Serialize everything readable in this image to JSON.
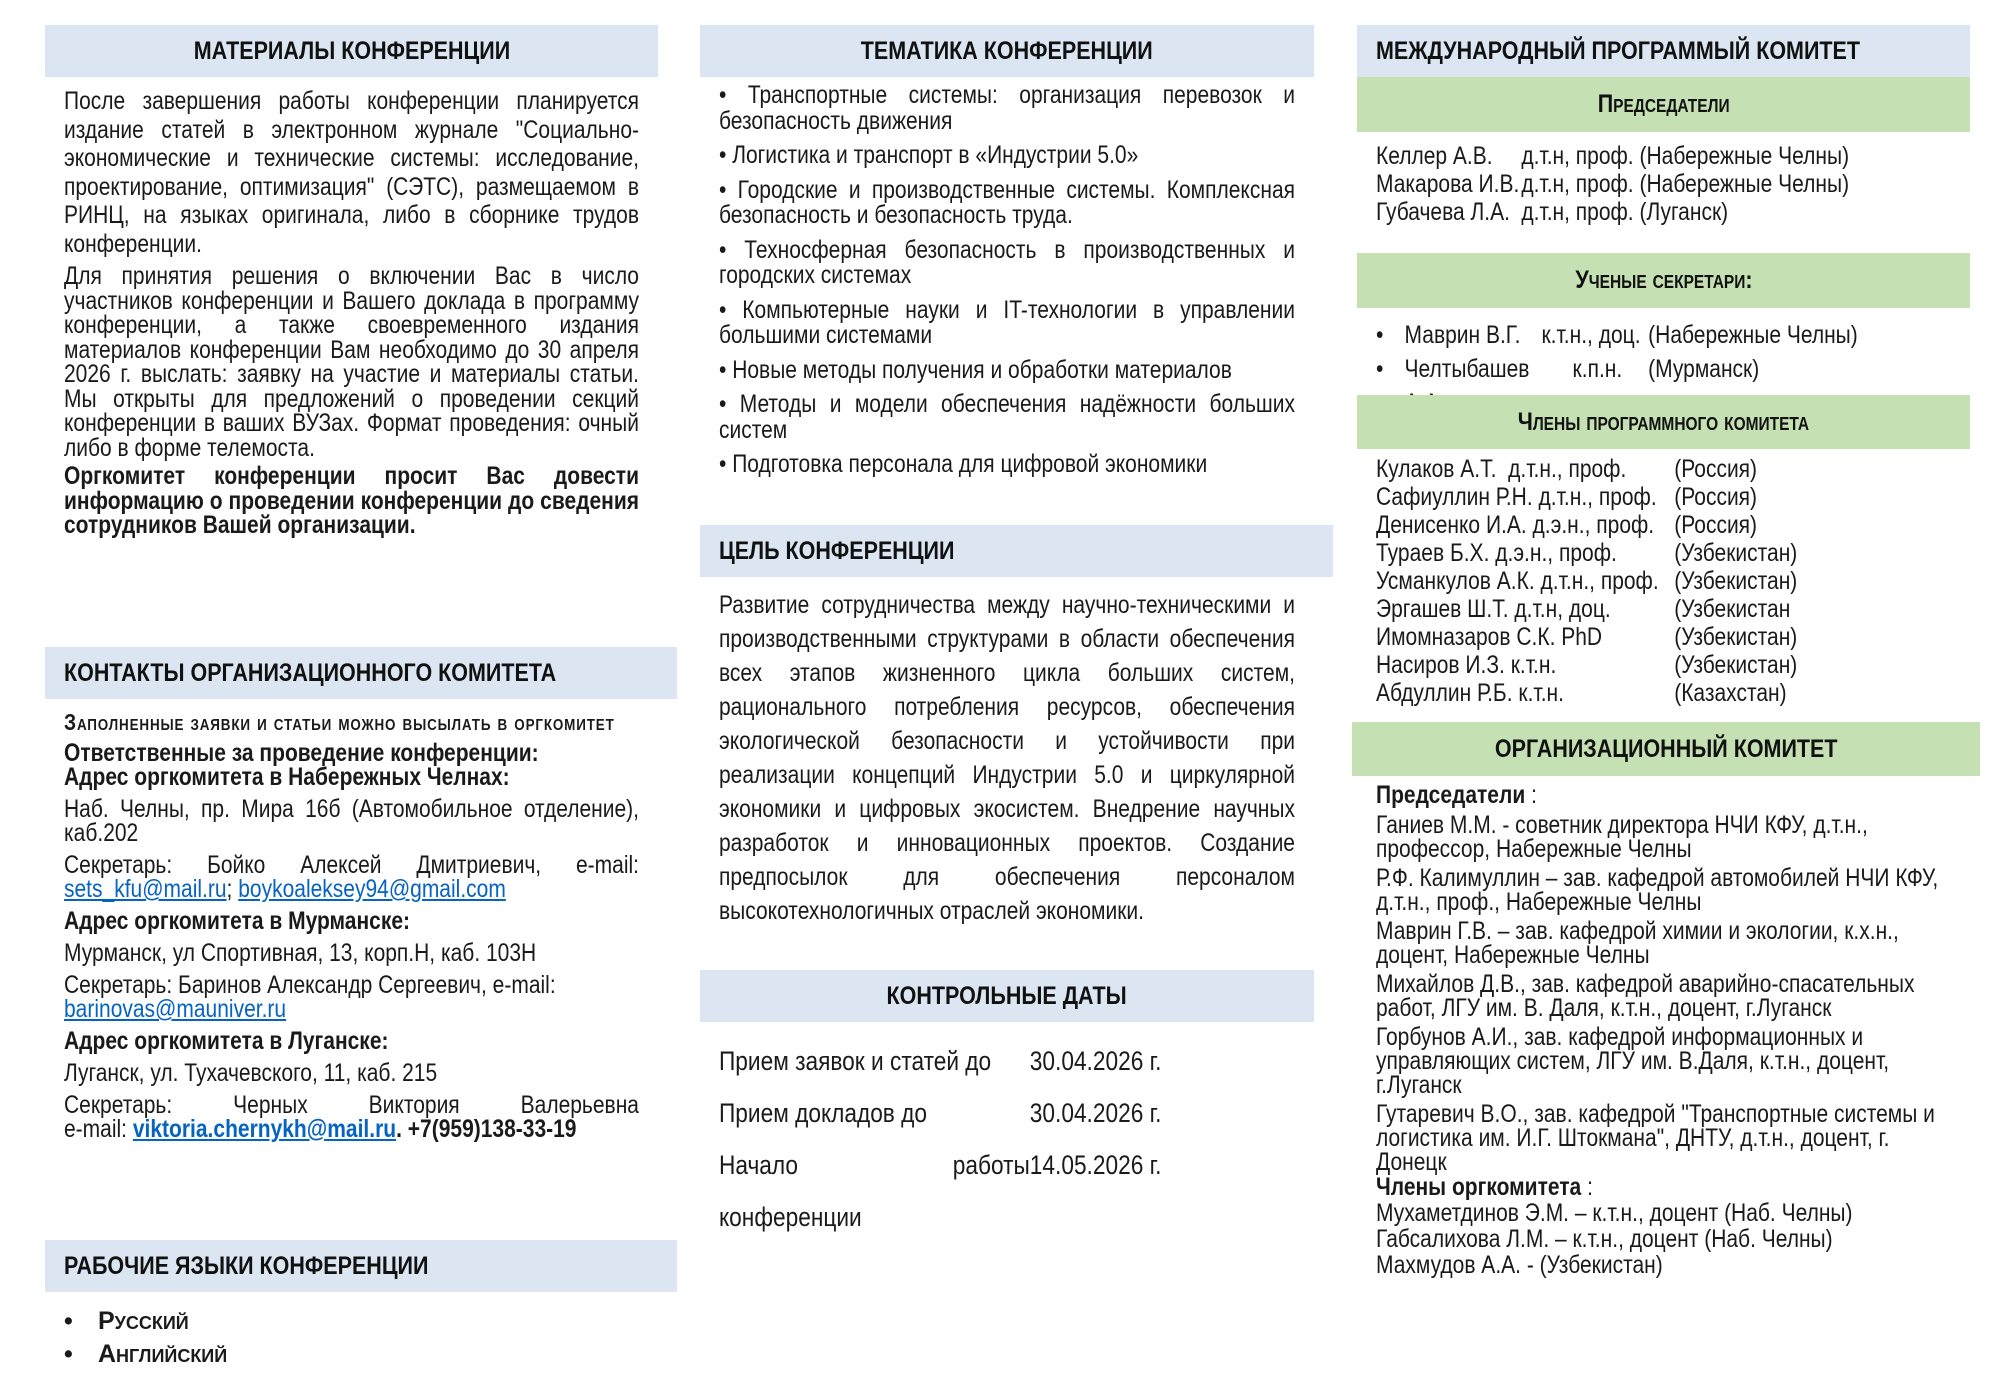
{
  "colors": {
    "section_header_bg": "#dce6f2",
    "subsection_header_bg": "#c5e0b3",
    "link": "#0563c1"
  },
  "materials": {
    "title": "МАТЕРИАЛЫ КОНФЕРЕНЦИИ",
    "p1": "После завершения работы конференции планируется издание статей в электронном журнале \"Социально-экономические и технические системы: исследование, проектирование, оптимизация\" (СЭТС), размещаемом в РИНЦ, на языках оригинала, либо в сборнике трудов конференции.",
    "p2": "Для принятия решения о включении Вас в число участников конференции и Вашего доклада в программу конференции, а также своевременного издания материалов конференции Вам необходимо до 30 апреля 2026 г. выслать: заявку на участие и материалы статьи. Мы открыты для предложений о проведении секций конференции в ваших ВУЗах. Формат проведения: очный либо в форме телемоста.",
    "p3": "Оргкомитет конференции просит Вас довести информацию о проведении конференции до сведения сотрудников Вашей организации."
  },
  "contacts": {
    "title": "КОНТАКТЫ ОРГАНИЗАЦИОННОГО КОМИТЕТА",
    "intro": "Заполненные заявки и статьи можно высылать в оргкомитет",
    "responsible": "Ответственные за проведение конференции:",
    "chelny_title": "Адрес оргкомитета в Набережных Челнах:",
    "chelny_address": "Наб. Челны, пр. Мира 16б (Автомобильное отделение), каб.202",
    "chelny_secretary": "Секретарь: Бойко Алексей Дмитриевич, e-mail:",
    "chelny_email1": "sets_kfu@mail.ru",
    "chelny_sep": "; ",
    "chelny_email2": "boykoaleksey94@gmail.com",
    "murmansk_title": "Адрес оргкомитета в Мурманске:",
    "murmansk_address": "Мурманск, ул Спортивная, 13, корп.Н, каб. 103Н",
    "murmansk_secretary": "Секретарь: Баринов Александр Сергеевич, e-mail:",
    "murmansk_email": "barinovas@mauniver.ru",
    "lugansk_title": "Адрес оргкомитета в Луганске:",
    "lugansk_address": "Луганск, ул. Тухачевского, 11, каб. 215",
    "lugansk_secretary": "Секретарь: Черных Виктория Валерьевна",
    "lugansk_email_label": "e-mail:",
    "lugansk_email": "viktoria.chernykh@mail.ru",
    "lugansk_phone": ". +7(959)138-33-19"
  },
  "languages": {
    "title": "РАБОЧИЕ ЯЗЫКИ КОНФЕРЕНЦИИ",
    "items": [
      "Русский",
      "Английский"
    ]
  },
  "topics": {
    "title": "ТЕМАТИКА КОНФЕРЕНЦИИ",
    "items": [
      "Транспортные системы: организация перевозок и безопасность движения",
      "Логистика и транспорт в «Индустрии 5.0»",
      "Городские и производственные системы. Комплексная безопасность и безопасность труда.",
      "Техносферная безопасность в производственных и городских системах",
      "Компьютерные науки и IT-технологии в управлении большими системами",
      "Новые методы получения и обработки материалов",
      "Методы и модели обеспечения надёжности больших систем",
      "Подготовка персонала для цифровой экономики"
    ]
  },
  "goal": {
    "title": "ЦЕЛЬ КОНФЕРЕНЦИИ",
    "text": "Развитие сотрудничества между научно-техническими и производственными структурами в области обеспечения всех этапов жизненного цикла больших систем, рационального потребления ресурсов, обеспечения экологической безопасности и устойчивости при реализации концепций Индустрии 5.0 и циркулярной экономики и цифровых экосистем. Внедрение научных разработок и инновационных проектов. Создание предпосылок для обеспечения персоналом высокотехнологичных отраслей экономики."
  },
  "dates": {
    "title": "КОНТРОЛЬНЫЕ ДАТЫ",
    "rows": [
      {
        "label": "Прием заявок и статей до",
        "date": "30.04.2026 г."
      },
      {
        "label": "Прием докладов до",
        "date": "30.04.2026 г."
      },
      {
        "label": "Начало работы конференции",
        "date": "14.05.2026 г."
      }
    ]
  },
  "program_committee": {
    "title": "МЕЖДУНАРОДНЫЙ ПРОГРАММЫЙ КОМИТЕТ",
    "chairs_title": "Председатели",
    "chairs": [
      {
        "name": "Келлер А.В.",
        "info": "д.т.н, проф. (Набережные Челны)"
      },
      {
        "name": "Макарова И.В.",
        "info": "д.т.н, проф. (Набережные Челны)"
      },
      {
        "name": "Губачева Л.А.",
        "info": "д.т.н, проф. (Луганск)"
      }
    ],
    "secretaries_title": "Ученые секретари:",
    "secretaries": [
      {
        "name": "Маврин  В.Г.",
        "degree": "к.т.н., доц.",
        "city": "(Набережные Челны)"
      },
      {
        "name": "Челтыбашев А.А.",
        "degree": "к.п.н.",
        "city": "(Мурманск)"
      }
    ],
    "members_title": "Члены программного комитета",
    "members": [
      {
        "name": "Кулаков А.Т.  д.т.н., проф.",
        "country": "(Россия)"
      },
      {
        "name": "Сафиуллин Р.Н. д.т.н., проф.",
        "country": "(Россия)"
      },
      {
        "name": "Денисенко И.А. д.э.н., проф.",
        "country": "(Россия)"
      },
      {
        "name": "Тураев Б.Х. д.э.н., проф.",
        "country": "(Узбекистан)"
      },
      {
        "name": "Усманкулов А.К. д.т.н., проф.",
        "country": "(Узбекистан)"
      },
      {
        "name": "Эргашев Ш.Т. д.т.н, доц.",
        "country": "(Узбекистан"
      },
      {
        "name": "Имомназаров С.К. PhD",
        "country": "(Узбекистан)"
      },
      {
        "name": "Насиров И.З. к.т.н.",
        "country": "(Узбекистан)"
      },
      {
        "name": "Абдуллин Р.Б. к.т.н.",
        "country": "(Казахстан)"
      }
    ]
  },
  "org_committee": {
    "title": "ОРГАНИЗАЦИОННЫЙ КОМИТЕТ",
    "chairs_label": "Председатели",
    "colon": " :",
    "chairs": [
      "Ганиев М.М. -  советник директора НЧИ КФУ, д.т.н., профессор, Набережные Челны",
      "Р.Ф. Калимуллин – зав. кафедрой автомобилей НЧИ КФУ, д.т.н., проф., Набережные Челны",
      "Маврин Г.В. – зав. кафедрой химии и экологии, к.х.н., доцент, Набережные Челны",
      "Михайлов Д.В., зав. кафедрой аварийно-спасательных работ, ЛГУ им. В. Даля, к.т.н., доцент, г.Луганск",
      "Горбунов А.И., зав. кафедрой информационных и управляющих систем, ЛГУ им. В.Даля, к.т.н., доцент, г.Луганск",
      "Гутаревич В.О., зав. кафедрой \"Транспортные системы и логистика им. И.Г. Штокмана\", ДНТУ, д.т.н., доцент, г. Донецк"
    ],
    "members_label": "Члены оргкомитета",
    "members": [
      "Мухаметдинов Э.М. – к.т.н., доцент (Наб. Челны)",
      "Габсалихова Л.М. – к.т.н., доцент (Наб. Челны)",
      "Махмудов А.А. -  (Узбекистан)"
    ]
  }
}
